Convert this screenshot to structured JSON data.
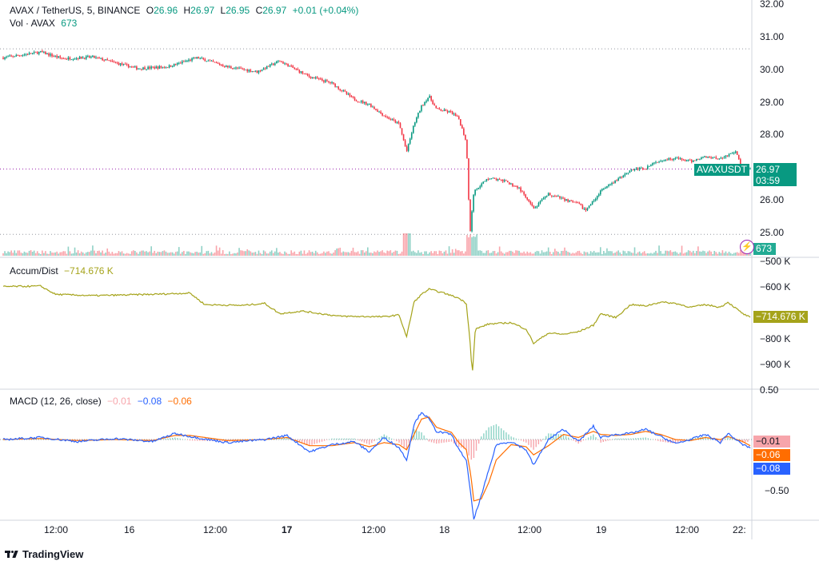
{
  "header": {
    "symbol": "AVAX / TetherUS, 5, BINANCE",
    "o_label": "O",
    "o_value": "26.96",
    "h_label": "H",
    "h_value": "26.97",
    "l_label": "L",
    "l_value": "26.95",
    "c_label": "C",
    "c_value": "26.97",
    "change": "+0.01 (+0.04%)"
  },
  "volume_legend": {
    "label": "Vol · AVAX",
    "value": "673"
  },
  "ad_legend": {
    "label": "Accum/Dist",
    "value": "−714.676 K"
  },
  "macd_legend": {
    "label": "MACD (12, 26, close)",
    "v1": "−0.01",
    "v2": "−0.08",
    "v3": "−0.06"
  },
  "price_axis": {
    "ticks": [
      "32.00",
      "31.00",
      "30.00",
      "29.00",
      "28.00",
      "27.00",
      "26.00",
      "25.00"
    ]
  },
  "price_tags": {
    "symbol": "AVAXUSDT",
    "price": "26.97",
    "countdown": "03:59",
    "volume": "673"
  },
  "ad_axis": {
    "ticks": [
      "−500 K",
      "−600 K",
      "−700 K",
      "−800 K",
      "−900 K"
    ]
  },
  "macd_axis": {
    "ticks": [
      "0.50",
      "−0.50"
    ],
    "tags": [
      "−0.01",
      "−0.06",
      "−0.08"
    ]
  },
  "time_axis": {
    "labels": [
      "12:00",
      "16",
      "12:00",
      "17",
      "12:00",
      "18",
      "12:00",
      "19",
      "12:00",
      "22:"
    ]
  },
  "branding": {
    "text": "TradingView"
  },
  "colors": {
    "up": "#089981",
    "down": "#f23645",
    "ad_line": "#a5a31a",
    "macd": "#2962ff",
    "signal": "#ff6d00",
    "hist_neg": "#f7a5ab",
    "hist_pos": "#8cd3c6"
  },
  "chart_data": {
    "type": "line",
    "title": "AVAX / TetherUS, 5, BINANCE",
    "xlabel": "",
    "ylabel": "",
    "x_labels": [
      "12:00",
      "16",
      "12:00",
      "17",
      "12:00",
      "18",
      "12:00",
      "19",
      "12:00",
      "22:"
    ],
    "ylim": [
      24.9,
      32.2
    ],
    "series": [
      {
        "name": "AVAX / TetherUS",
        "anchors": [
          [
            0,
            30.38
          ],
          [
            5,
            30.55
          ],
          [
            8,
            30.35
          ],
          [
            12,
            30.4
          ],
          [
            18,
            30.05
          ],
          [
            22,
            30.1
          ],
          [
            26,
            30.38
          ],
          [
            30,
            30.1
          ],
          [
            34,
            29.95
          ],
          [
            37,
            30.28
          ],
          [
            41,
            29.8
          ],
          [
            44,
            29.6
          ],
          [
            47,
            29.1
          ],
          [
            49,
            28.95
          ],
          [
            51,
            28.6
          ],
          [
            53,
            28.35
          ],
          [
            54,
            27.5
          ],
          [
            55,
            28.35
          ],
          [
            56,
            28.9
          ],
          [
            57,
            29.2
          ],
          [
            58,
            28.8
          ],
          [
            60,
            28.7
          ],
          [
            61,
            28.5
          ],
          [
            62,
            27.8
          ],
          [
            62.5,
            25.0
          ],
          [
            63,
            26.3
          ],
          [
            65,
            26.7
          ],
          [
            67,
            26.6
          ],
          [
            69,
            26.4
          ],
          [
            71,
            25.75
          ],
          [
            73,
            26.2
          ],
          [
            75,
            26.05
          ],
          [
            77,
            25.9
          ],
          [
            78,
            25.7
          ],
          [
            80,
            26.3
          ],
          [
            82,
            26.6
          ],
          [
            84,
            26.95
          ],
          [
            86,
            27.0
          ],
          [
            88,
            27.25
          ],
          [
            90,
            27.3
          ],
          [
            92,
            27.2
          ],
          [
            94,
            27.35
          ],
          [
            96,
            27.3
          ],
          [
            98,
            27.5
          ],
          [
            99,
            26.97
          ],
          [
            100,
            26.97
          ]
        ]
      },
      {
        "name": "Accum/Dist",
        "anchors": [
          [
            0,
            -595
          ],
          [
            5,
            -593
          ],
          [
            7,
            -625
          ],
          [
            12,
            -630
          ],
          [
            20,
            -625
          ],
          [
            25,
            -620
          ],
          [
            27,
            -665
          ],
          [
            32,
            -668
          ],
          [
            35,
            -660
          ],
          [
            37,
            -700
          ],
          [
            40,
            -690
          ],
          [
            45,
            -710
          ],
          [
            51,
            -712
          ],
          [
            53,
            -705
          ],
          [
            54,
            -790
          ],
          [
            55,
            -655
          ],
          [
            56,
            -625
          ],
          [
            57,
            -605
          ],
          [
            59,
            -620
          ],
          [
            61,
            -640
          ],
          [
            62,
            -660
          ],
          [
            62.5,
            -810
          ],
          [
            62.8,
            -935
          ],
          [
            63.2,
            -760
          ],
          [
            65,
            -740
          ],
          [
            68,
            -735
          ],
          [
            70,
            -760
          ],
          [
            71,
            -815
          ],
          [
            73,
            -775
          ],
          [
            75,
            -780
          ],
          [
            77,
            -770
          ],
          [
            79,
            -745
          ],
          [
            80,
            -700
          ],
          [
            82,
            -715
          ],
          [
            84,
            -665
          ],
          [
            86,
            -670
          ],
          [
            88,
            -655
          ],
          [
            90,
            -660
          ],
          [
            92,
            -675
          ],
          [
            94,
            -665
          ],
          [
            96,
            -675
          ],
          [
            97,
            -655
          ],
          [
            99,
            -700
          ],
          [
            100,
            -714.676
          ]
        ]
      },
      {
        "name": "MACD",
        "anchors": [
          [
            0,
            0.0
          ],
          [
            5,
            0.02
          ],
          [
            10,
            -0.02
          ],
          [
            15,
            0.01
          ],
          [
            20,
            -0.02
          ],
          [
            23,
            0.06
          ],
          [
            25,
            0.03
          ],
          [
            30,
            -0.03
          ],
          [
            35,
            0.0
          ],
          [
            38,
            0.04
          ],
          [
            41,
            -0.12
          ],
          [
            44,
            -0.05
          ],
          [
            47,
            -0.02
          ],
          [
            49,
            -0.12
          ],
          [
            51,
            0.02
          ],
          [
            53,
            -0.08
          ],
          [
            54,
            -0.2
          ],
          [
            55,
            0.15
          ],
          [
            56,
            0.27
          ],
          [
            57,
            0.2
          ],
          [
            58,
            0.08
          ],
          [
            60,
            0.05
          ],
          [
            61,
            -0.1
          ],
          [
            62,
            -0.2
          ],
          [
            62.6,
            -0.55
          ],
          [
            63,
            -0.78
          ],
          [
            64,
            -0.55
          ],
          [
            65,
            -0.3
          ],
          [
            66,
            -0.05
          ],
          [
            68,
            -0.02
          ],
          [
            70,
            -0.1
          ],
          [
            71,
            -0.25
          ],
          [
            73,
            0.0
          ],
          [
            75,
            0.1
          ],
          [
            77,
            -0.02
          ],
          [
            79,
            0.13
          ],
          [
            80,
            0.02
          ],
          [
            82,
            0.05
          ],
          [
            84,
            0.06
          ],
          [
            86,
            0.1
          ],
          [
            88,
            0.03
          ],
          [
            90,
            -0.04
          ],
          [
            92,
            0.0
          ],
          [
            94,
            0.05
          ],
          [
            96,
            -0.03
          ],
          [
            97,
            0.06
          ],
          [
            99,
            -0.05
          ],
          [
            100,
            -0.08
          ]
        ]
      },
      {
        "name": "Signal",
        "anchors": [
          [
            0,
            0.0
          ],
          [
            5,
            0.01
          ],
          [
            10,
            -0.01
          ],
          [
            15,
            0.0
          ],
          [
            20,
            -0.01
          ],
          [
            23,
            0.04
          ],
          [
            25,
            0.04
          ],
          [
            30,
            -0.01
          ],
          [
            35,
            0.0
          ],
          [
            38,
            0.02
          ],
          [
            41,
            -0.06
          ],
          [
            44,
            -0.06
          ],
          [
            47,
            -0.03
          ],
          [
            49,
            -0.07
          ],
          [
            51,
            -0.03
          ],
          [
            53,
            -0.05
          ],
          [
            54,
            -0.1
          ],
          [
            55,
            0.05
          ],
          [
            56,
            0.2
          ],
          [
            57,
            0.22
          ],
          [
            58,
            0.12
          ],
          [
            60,
            0.07
          ],
          [
            61,
            -0.03
          ],
          [
            62,
            -0.1
          ],
          [
            62.6,
            -0.35
          ],
          [
            63,
            -0.6
          ],
          [
            64,
            -0.58
          ],
          [
            65,
            -0.42
          ],
          [
            66,
            -0.2
          ],
          [
            68,
            -0.05
          ],
          [
            70,
            -0.07
          ],
          [
            71,
            -0.15
          ],
          [
            73,
            -0.06
          ],
          [
            75,
            0.05
          ],
          [
            77,
            0.02
          ],
          [
            79,
            0.08
          ],
          [
            80,
            0.05
          ],
          [
            82,
            0.04
          ],
          [
            84,
            0.05
          ],
          [
            86,
            0.08
          ],
          [
            88,
            0.05
          ],
          [
            90,
            0.0
          ],
          [
            92,
            -0.01
          ],
          [
            94,
            0.02
          ],
          [
            96,
            0.0
          ],
          [
            97,
            0.03
          ],
          [
            99,
            -0.02
          ],
          [
            100,
            -0.06
          ]
        ]
      }
    ],
    "note_units": "x anchors are positions along the time axis in percent of visible range; Accum/Dist values in K"
  }
}
